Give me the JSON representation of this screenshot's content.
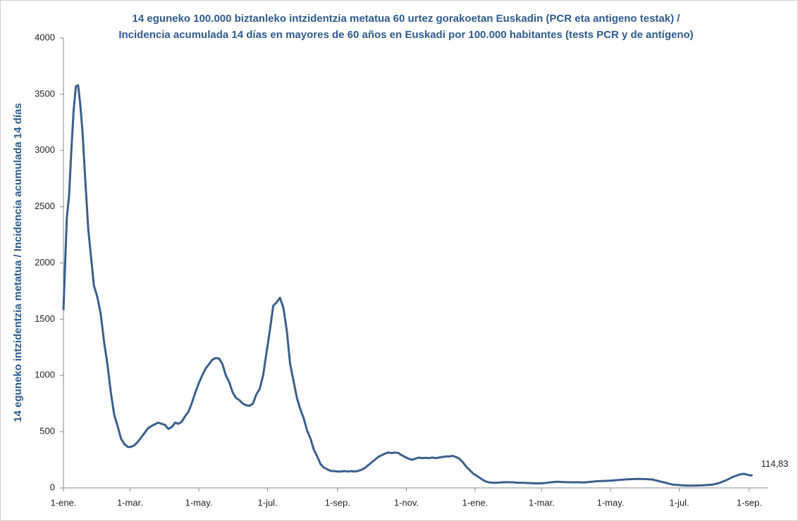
{
  "chart_data": {
    "type": "line",
    "title": [
      "14 eguneko 100.000 biztanleko intzidentzia metatua 60 urtez gorakoetan Euskadin (PCR eta antigeno testak) /",
      "Incidencia acumulada  14 días en mayores de 60 años en Euskadi por 100.000 habitantes (tests PCR y de antígeno)"
    ],
    "y_label": "14 eguneko intzidentzia metatua / Incidencia acumulada  14 días",
    "x": [
      0,
      3,
      5,
      7,
      9,
      11,
      13,
      15,
      17,
      19,
      22,
      25,
      27,
      30,
      33,
      36,
      39,
      42,
      45,
      48,
      51,
      54,
      57,
      60,
      63,
      66,
      69,
      72,
      75,
      78,
      81,
      84,
      87,
      90,
      93,
      96,
      99,
      102,
      105,
      108,
      111,
      114,
      117,
      120,
      123,
      126,
      129,
      132,
      135,
      138,
      141,
      144,
      147,
      150,
      153,
      156,
      159,
      162,
      165,
      168,
      171,
      174,
      177,
      180,
      183,
      186,
      189,
      192,
      195,
      198,
      201,
      204,
      207,
      210,
      213,
      216,
      219,
      222,
      225,
      228,
      231,
      234,
      237,
      240,
      243,
      246,
      249,
      252,
      255,
      258,
      261,
      264,
      267,
      270,
      273,
      276,
      279,
      282,
      285,
      288,
      291,
      294,
      297,
      300,
      303,
      306,
      309,
      312,
      315,
      318,
      321,
      324,
      327,
      330,
      333,
      336,
      339,
      342,
      345,
      348,
      351,
      354,
      357,
      360,
      363,
      366,
      369,
      372,
      375,
      378,
      381,
      384,
      387,
      390,
      393,
      396,
      399,
      402,
      405,
      408,
      414,
      420,
      426,
      432,
      438,
      444,
      450,
      456,
      462,
      468,
      474,
      480,
      486,
      492,
      498,
      504,
      510,
      516,
      522,
      528,
      534,
      540,
      546,
      552,
      558,
      564,
      570,
      576,
      582,
      588,
      594,
      600,
      603,
      606,
      609,
      611
    ],
    "series": [
      {
        "color": "#3b5f8c",
        "values": [
          1581,
          2400,
          2600,
          3000,
          3350,
          3570,
          3580,
          3400,
          3150,
          2800,
          2300,
          2000,
          1800,
          1700,
          1550,
          1300,
          1100,
          850,
          650,
          550,
          440,
          390,
          365,
          365,
          380,
          410,
          450,
          490,
          530,
          550,
          565,
          580,
          570,
          560,
          525,
          540,
          580,
          570,
          590,
          640,
          680,
          760,
          850,
          930,
          1000,
          1060,
          1100,
          1140,
          1155,
          1150,
          1100,
          1000,
          940,
          850,
          800,
          780,
          750,
          735,
          730,
          750,
          830,
          880,
          1000,
          1200,
          1400,
          1620,
          1650,
          1690,
          1600,
          1400,
          1100,
          950,
          800,
          700,
          620,
          510,
          440,
          340,
          280,
          210,
          180,
          165,
          150,
          150,
          145,
          145,
          150,
          145,
          150,
          145,
          150,
          160,
          175,
          200,
          225,
          250,
          275,
          290,
          305,
          315,
          310,
          315,
          310,
          290,
          275,
          260,
          250,
          260,
          270,
          265,
          268,
          265,
          270,
          265,
          270,
          275,
          280,
          280,
          285,
          275,
          260,
          230,
          190,
          160,
          130,
          110,
          90,
          70,
          55,
          48,
          45,
          45,
          48,
          50,
          52,
          50,
          50,
          45,
          45,
          45,
          42,
          40,
          42,
          50,
          55,
          52,
          50,
          50,
          48,
          55,
          60,
          62,
          65,
          70,
          75,
          78,
          80,
          78,
          75,
          60,
          45,
          30,
          25,
          20,
          20,
          22,
          25,
          30,
          45,
          70,
          100,
          120,
          125,
          118,
          110,
          114.83
        ],
        "value_labels": [
          null,
          null,
          null,
          null,
          null,
          null,
          null,
          null,
          null,
          null,
          null,
          null,
          null,
          null,
          null,
          null,
          null,
          null,
          null,
          null,
          null,
          null,
          null,
          null,
          null,
          null,
          null,
          null,
          null,
          null,
          null,
          null,
          null,
          null,
          null,
          null,
          null,
          null,
          null,
          null,
          null,
          null,
          null,
          null,
          null,
          null,
          null,
          null,
          null,
          null,
          null,
          null,
          null,
          null,
          null,
          null,
          null,
          null,
          null,
          null,
          null,
          null,
          null,
          null,
          null,
          null,
          null,
          null,
          null,
          null,
          null,
          null,
          null,
          null,
          null,
          null,
          null,
          null,
          null,
          null,
          null,
          null,
          null,
          null,
          null,
          null,
          null,
          null,
          null,
          null,
          null,
          null,
          null,
          null,
          null,
          null,
          null,
          null,
          null,
          null,
          null,
          null,
          null,
          null,
          null,
          null,
          null,
          null,
          null,
          null,
          null,
          null,
          null,
          null,
          null,
          null,
          null,
          null,
          null,
          null,
          null,
          null,
          null,
          null,
          null,
          null,
          null,
          null,
          null,
          null,
          null,
          null,
          null,
          null,
          null,
          null,
          null,
          null,
          null,
          null,
          null,
          null,
          null,
          null,
          null,
          null,
          null,
          null,
          null,
          null,
          null,
          null,
          null,
          null,
          null,
          null,
          null,
          null,
          null,
          null,
          null,
          null,
          null,
          null,
          null,
          null,
          null,
          null,
          null,
          null,
          null,
          null,
          null,
          null,
          null,
          "114,83"
        ]
      }
    ],
    "xlim": [
      0,
      625
    ],
    "xticks": [
      {
        "value": 0,
        "label": "1-ene."
      },
      {
        "value": 59,
        "label": "1-mar."
      },
      {
        "value": 120,
        "label": "1-may."
      },
      {
        "value": 181,
        "label": "1-jul."
      },
      {
        "value": 243,
        "label": "1-sep."
      },
      {
        "value": 304,
        "label": "1-nov."
      },
      {
        "value": 365,
        "label": "1-ene."
      },
      {
        "value": 424,
        "label": "1-mar."
      },
      {
        "value": 485,
        "label": "1-may."
      },
      {
        "value": 546,
        "label": "1-jul."
      },
      {
        "value": 608,
        "label": "1-sep."
      }
    ],
    "ylim": [
      0,
      4000
    ],
    "yticks": [
      0,
      500,
      1000,
      1500,
      2000,
      2500,
      3000,
      3500,
      4000
    ],
    "grid": false
  }
}
